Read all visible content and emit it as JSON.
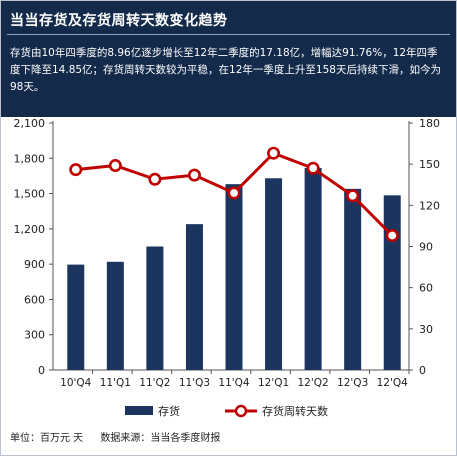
{
  "header": {
    "title": "当当存货及存货周转天数变化趋势",
    "description": "存货由10年四季度的8.96亿逐步增长至12年二季度的17.18亿，增幅达91.76%，12年四季度下降至14.85亿；存货周转天数较为平稳，在12年一季度上升至158天后持续下滑，如今为98天。"
  },
  "footer": {
    "unit": "单位：百万元  天",
    "source": "数据来源：当当各季度财报"
  },
  "colors": {
    "header_bg": "#142a4a",
    "bar": "#1b355f",
    "line": "#c00000",
    "marker_fill": "#ffffff"
  },
  "chart_data": {
    "type": "bar",
    "categories": [
      "10'Q4",
      "11'Q1",
      "11'Q2",
      "11'Q3",
      "11'Q4",
      "12'Q1",
      "12'Q2",
      "12'Q3",
      "12'Q4"
    ],
    "series": [
      {
        "name": "存货",
        "type": "bar",
        "axis": "left",
        "values": [
          896,
          920,
          1050,
          1240,
          1580,
          1630,
          1718,
          1540,
          1485
        ]
      },
      {
        "name": "存货周转天数",
        "type": "line",
        "axis": "right",
        "values": [
          146,
          149,
          139,
          142,
          129,
          158,
          147,
          127,
          98
        ]
      }
    ],
    "y_left": {
      "range": [
        0,
        2100
      ],
      "ticks": [
        "0",
        "300",
        "600",
        "900",
        "1,200",
        "1,500",
        "1,800",
        "2,100"
      ]
    },
    "y_right": {
      "range": [
        0,
        180
      ],
      "ticks": [
        "0",
        "30",
        "60",
        "90",
        "120",
        "150",
        "180"
      ]
    },
    "grid": false,
    "legend": "bottom"
  }
}
